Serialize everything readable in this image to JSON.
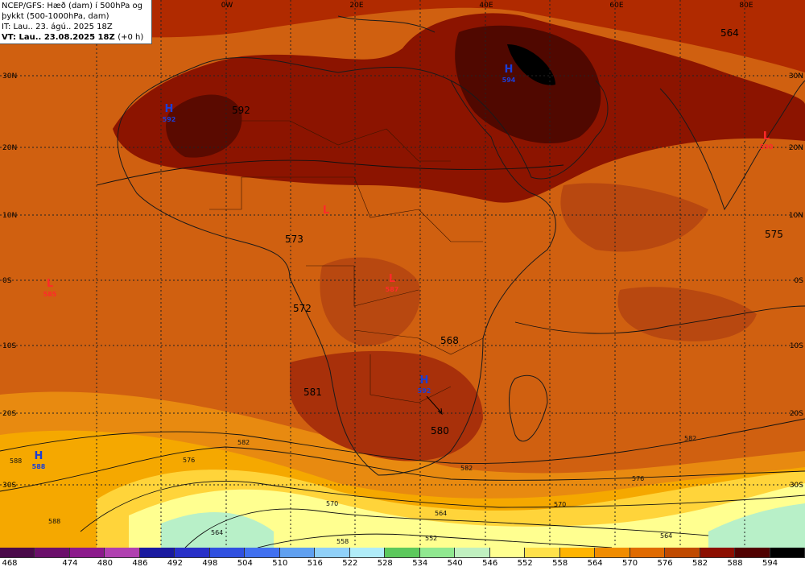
{
  "title": {
    "line1": "NCEP/GFS: Hæð (dam) í 500hPa og",
    "line2": "þykkt (500-1000hPa, dam)",
    "line3": "IT: Lau.. 23. ágú.. 2025 18Z",
    "line4_bold": "VT: Lau.. 23.08.2025 18Z",
    "line4_normal": "(+0 h)"
  },
  "longitude_labels": [
    "0W",
    "20E",
    "40E",
    "60E",
    "80E"
  ],
  "latitude_labels_left": [
    "30N",
    "20N",
    "10N",
    "0S",
    "10S",
    "20S",
    "30S"
  ],
  "latitude_labels_right": [
    "30N",
    "20N",
    "10N",
    "0S",
    "10S",
    "20S",
    "30S"
  ],
  "pressure_systems": [
    {
      "type": "H",
      "value": "592",
      "color": "#1a3fd8"
    },
    {
      "type": "H",
      "value": "594",
      "color": "#1a3fd8"
    },
    {
      "type": "L",
      "value": "590",
      "color": "#ff2a2a"
    },
    {
      "type": "L",
      "value": "",
      "color": "#ff2a2a"
    },
    {
      "type": "L",
      "value": "585",
      "color": "#ff2a2a"
    },
    {
      "type": "L",
      "value": "587",
      "color": "#ff2a2a"
    },
    {
      "type": "H",
      "value": "592",
      "color": "#1a3fd8"
    },
    {
      "type": "H",
      "value": "588",
      "color": "#1a3fd8"
    }
  ],
  "thickness_labels": [
    "592",
    "573",
    "572",
    "568",
    "581",
    "580",
    "575",
    "564"
  ],
  "contour_labels": [
    "588",
    "582",
    "576",
    "570",
    "564",
    "558",
    "552"
  ],
  "legend": {
    "values": [
      "468",
      "474",
      "480",
      "486",
      "492",
      "498",
      "504",
      "510",
      "516",
      "522",
      "528",
      "534",
      "540",
      "546",
      "552",
      "558",
      "564",
      "570",
      "576",
      "582",
      "588",
      "594"
    ],
    "colors": [
      "#4a0a4a",
      "#6b0f6b",
      "#8c1a8c",
      "#b040b0",
      "#1a1aa0",
      "#2830c8",
      "#3050e0",
      "#4070f0",
      "#60a0f0",
      "#90d0f8",
      "#b0ecf8",
      "#5cc85c",
      "#90e890",
      "#c0f0c0",
      "#ffff90",
      "#ffe14a",
      "#ffb400",
      "#f08c00",
      "#e06a00",
      "#c04a00",
      "#8c0e00",
      "#500000",
      "#000000"
    ]
  }
}
